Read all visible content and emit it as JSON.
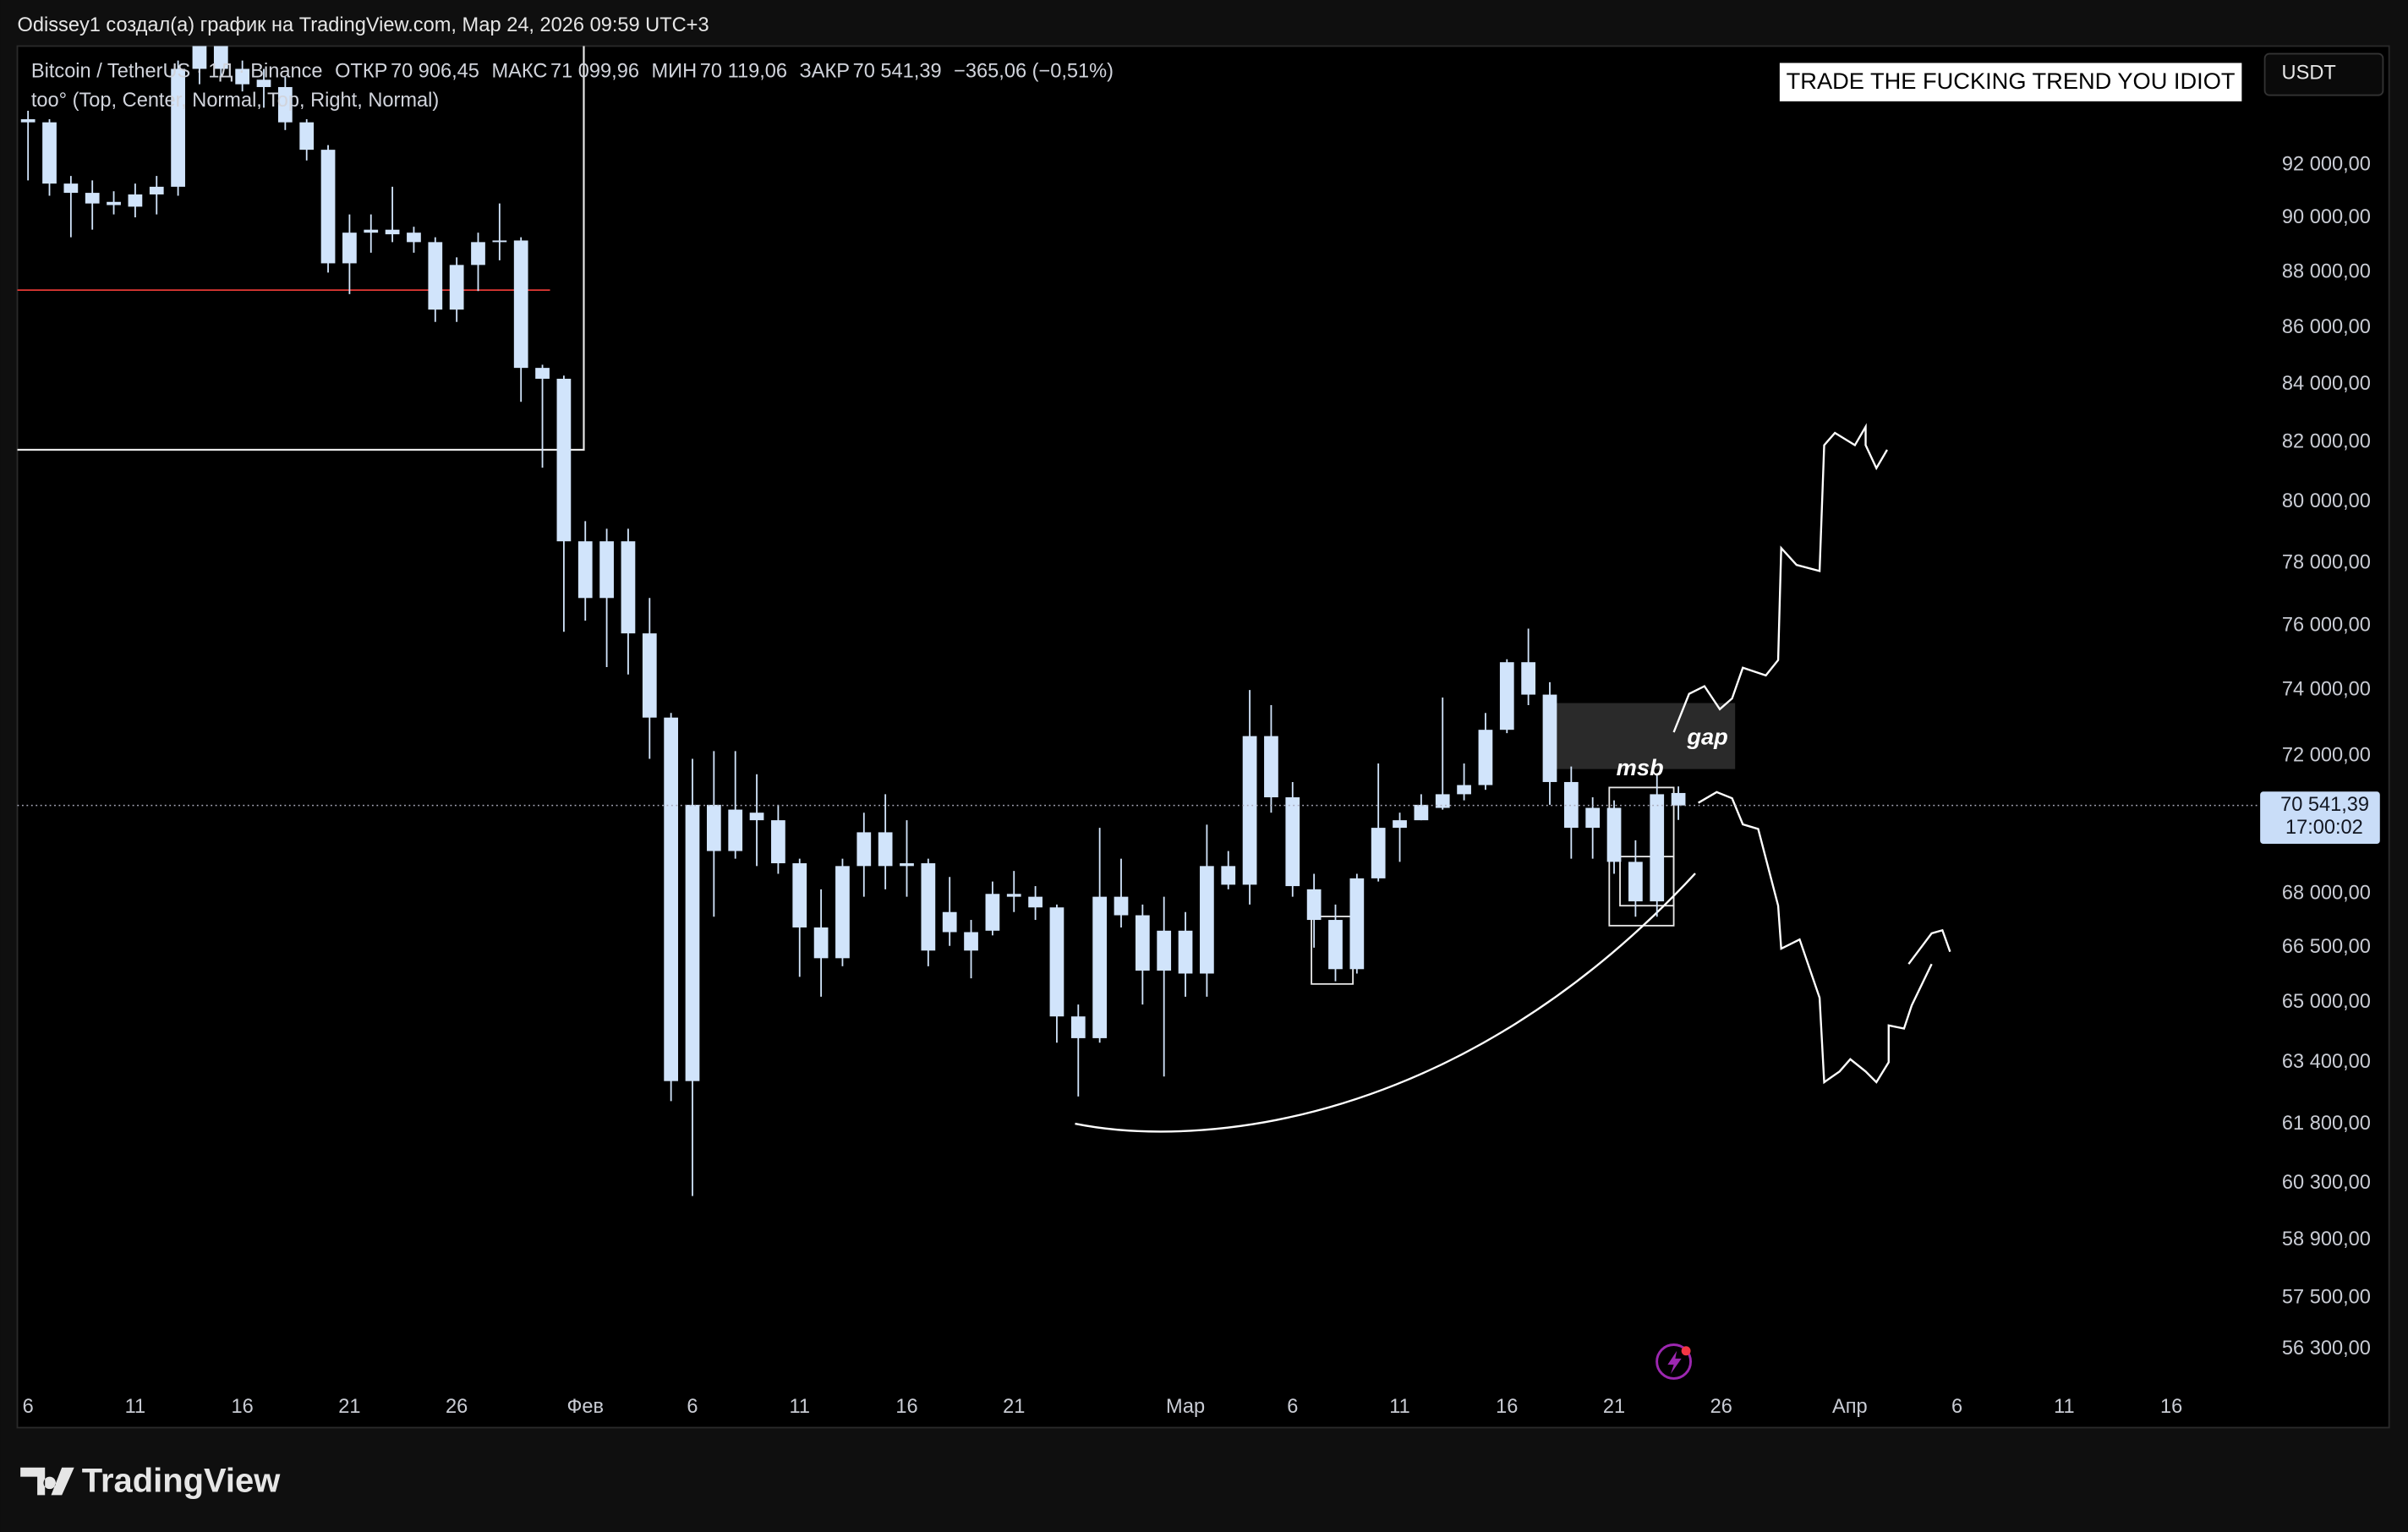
{
  "header": {
    "caption": "Odissey1 создал(а) график на TradingView.com, Мар 24, 2026 09:59 UTC+3",
    "logo": "TradingView"
  },
  "legend": {
    "symbol": "Bitcoin / TetherUS · 1Д · Binance",
    "items": [
      {
        "label": "ОТКР",
        "value": "70 906,45"
      },
      {
        "label": "МАКС",
        "value": "71 099,96"
      },
      {
        "label": "МИН",
        "value": "70 119,06"
      },
      {
        "label": "ЗАКР",
        "value": "70 541,39"
      }
    ],
    "change": "−365,06 (−0,51%)",
    "indicator": "too° (Top, Center, Normal, Top, Right, Normal)"
  },
  "toolbar": {
    "currency": "USDT"
  },
  "annotations": {
    "banner": "TRADE THE FUCKING TREND YOU IDIOT",
    "gap": "gap",
    "msb": "msb"
  },
  "chart_data": {
    "type": "candlestick",
    "log": true,
    "color": "#d1e4fb",
    "grid": false,
    "price_label": "70 541,39",
    "countdown": "17:00:02",
    "xlim": [
      "2026-01-05",
      "2026-04-20"
    ],
    "ylim": [
      55370,
      96660
    ],
    "x": [
      "2026-01-06",
      "2026-01-07",
      "2026-01-08",
      "2026-01-09",
      "2026-01-10",
      "2026-01-11",
      "2026-01-12",
      "2026-01-13",
      "2026-01-14",
      "2026-01-15",
      "2026-01-16",
      "2026-01-17",
      "2026-01-18",
      "2026-01-19",
      "2026-01-20",
      "2026-01-21",
      "2026-01-22",
      "2026-01-23",
      "2026-01-24",
      "2026-01-25",
      "2026-01-26",
      "2026-01-27",
      "2026-01-28",
      "2026-01-29",
      "2026-01-30",
      "2026-01-31",
      "2026-02-01",
      "2026-02-02",
      "2026-02-03",
      "2026-02-04",
      "2026-02-05",
      "2026-02-06",
      "2026-02-07",
      "2026-02-08",
      "2026-02-09",
      "2026-02-10",
      "2026-02-11",
      "2026-02-12",
      "2026-02-13",
      "2026-02-14",
      "2026-02-15",
      "2026-02-16",
      "2026-02-17",
      "2026-02-18",
      "2026-02-19",
      "2026-02-20",
      "2026-02-21",
      "2026-02-22",
      "2026-02-23",
      "2026-02-24",
      "2026-02-25",
      "2026-02-26",
      "2026-02-27",
      "2026-02-28",
      "2026-03-01",
      "2026-03-02",
      "2026-03-03",
      "2026-03-04",
      "2026-03-05",
      "2026-03-06",
      "2026-03-07",
      "2026-03-08",
      "2026-03-09",
      "2026-03-10",
      "2026-03-11",
      "2026-03-12",
      "2026-03-13",
      "2026-03-14",
      "2026-03-15",
      "2026-03-16",
      "2026-03-17",
      "2026-03-18",
      "2026-03-19",
      "2026-03-20",
      "2026-03-21",
      "2026-03-22",
      "2026-03-23",
      "2026-03-24"
    ],
    "open": [
      93650,
      93650,
      91300,
      90950,
      90490,
      90430,
      90890,
      91180,
      95750,
      96790,
      95750,
      95320,
      95030,
      93650,
      92590,
      88330,
      89460,
      89570,
      89460,
      89110,
      86650,
      88270,
      89110,
      89170,
      84580,
      84200,
      78710,
      76880,
      78710,
      75760,
      73160,
      62920,
      70560,
      69220,
      70330,
      70110,
      68870,
      67060,
      66210,
      68790,
      69760,
      68790,
      68870,
      67490,
      66930,
      66970,
      68000,
      67920,
      67620,
      64630,
      64050,
      67920,
      67400,
      65870,
      66970,
      65790,
      68790,
      68260,
      72600,
      70780,
      68130,
      67270,
      65910,
      68440,
      69890,
      70110,
      70470,
      70870,
      71140,
      72790,
      74860,
      73860,
      71230,
      69890,
      70470,
      68910,
      67790,
      70906.45
    ],
    "high": [
      94100,
      93770,
      91590,
      91420,
      91010,
      91300,
      91590,
      96080,
      97620,
      97620,
      96080,
      95750,
      95430,
      93770,
      92770,
      90140,
      90140,
      91180,
      89680,
      89290,
      88550,
      89460,
      90550,
      89290,
      84690,
      84310,
      79370,
      79120,
      79120,
      76880,
      73300,
      71920,
      72150,
      72150,
      71460,
      70560,
      69000,
      68130,
      69000,
      70330,
      70870,
      70110,
      69000,
      68480,
      67270,
      68350,
      68650,
      68220,
      67700,
      64950,
      69890,
      69000,
      67700,
      67920,
      67490,
      69980,
      69220,
      74000,
      73540,
      71230,
      68570,
      67700,
      68570,
      71780,
      70330,
      70870,
      73770,
      71780,
      73300,
      74950,
      75910,
      74240,
      71690,
      70780,
      70690,
      69530,
      71460,
      71099.96
    ],
    "low": [
      91420,
      90840,
      89290,
      89570,
      90140,
      90030,
      90140,
      90840,
      95140,
      95430,
      94860,
      94220,
      93350,
      92180,
      87990,
      87210,
      88720,
      89110,
      88720,
      86210,
      86210,
      87320,
      88440,
      83400,
      81150,
      75810,
      76160,
      74710,
      74480,
      71920,
      62400,
      59990,
      67360,
      69000,
      68790,
      68570,
      65700,
      65160,
      65990,
      67920,
      68130,
      67920,
      65990,
      66550,
      65660,
      66840,
      67490,
      67270,
      63930,
      62520,
      63930,
      67060,
      64950,
      63040,
      65160,
      65160,
      68130,
      67700,
      70330,
      67920,
      66500,
      65580,
      65790,
      68350,
      68910,
      70110,
      70420,
      70690,
      71000,
      72690,
      73540,
      70560,
      69000,
      69000,
      68570,
      67360,
      67360,
      70119.06
    ],
    "close": [
      93770,
      91300,
      90950,
      90550,
      90610,
      90890,
      91180,
      95750,
      96790,
      95750,
      95140,
      95030,
      93650,
      92590,
      88330,
      89460,
      89570,
      89400,
      89110,
      86650,
      88270,
      89110,
      89170,
      84580,
      84200,
      78710,
      76880,
      78710,
      75760,
      73160,
      62920,
      70560,
      69220,
      70420,
      70110,
      68870,
      67060,
      66210,
      68790,
      69760,
      68790,
      68870,
      66420,
      66930,
      66420,
      68000,
      67920,
      67620,
      64630,
      64050,
      67920,
      67400,
      65870,
      66970,
      65790,
      68790,
      68260,
      72600,
      70780,
      68220,
      67270,
      65910,
      68440,
      69890,
      70110,
      70560,
      70870,
      71140,
      72790,
      74860,
      73860,
      71230,
      69890,
      70470,
      68910,
      67790,
      70870,
      70541.39
    ],
    "xticks": [
      {
        "value": "2026-01-06",
        "label": "6"
      },
      {
        "value": "2026-01-11",
        "label": "11"
      },
      {
        "value": "2026-01-16",
        "label": "16"
      },
      {
        "value": "2026-01-21",
        "label": "21"
      },
      {
        "value": "2026-01-26",
        "label": "26"
      },
      {
        "value": "2026-02-01",
        "label": "Фев"
      },
      {
        "value": "2026-02-06",
        "label": "6"
      },
      {
        "value": "2026-02-11",
        "label": "11"
      },
      {
        "value": "2026-02-16",
        "label": "16"
      },
      {
        "value": "2026-02-21",
        "label": "21"
      },
      {
        "value": "2026-03-01",
        "label": "Мар"
      },
      {
        "value": "2026-03-06",
        "label": "6"
      },
      {
        "value": "2026-03-11",
        "label": "11"
      },
      {
        "value": "2026-03-16",
        "label": "16"
      },
      {
        "value": "2026-03-21",
        "label": "21"
      },
      {
        "value": "2026-03-26",
        "label": "26"
      },
      {
        "value": "2026-04-01",
        "label": "Апр"
      },
      {
        "value": "2026-04-06",
        "label": "6"
      },
      {
        "value": "2026-04-11",
        "label": "11"
      },
      {
        "value": "2026-04-16",
        "label": "16"
      }
    ],
    "yticks": [
      {
        "value": 92000,
        "label": "92 000,00"
      },
      {
        "value": 90000,
        "label": "90 000,00"
      },
      {
        "value": 88000,
        "label": "88 000,00"
      },
      {
        "value": 86000,
        "label": "86 000,00"
      },
      {
        "value": 84000,
        "label": "84 000,00"
      },
      {
        "value": 82000,
        "label": "82 000,00"
      },
      {
        "value": 80000,
        "label": "80 000,00"
      },
      {
        "value": 78000,
        "label": "78 000,00"
      },
      {
        "value": 76000,
        "label": "76 000,00"
      },
      {
        "value": 74000,
        "label": "74 000,00"
      },
      {
        "value": 72000,
        "label": "72 000,00"
      },
      {
        "value": 68000,
        "label": "68 000,00"
      },
      {
        "value": 66500,
        "label": "66 500,00"
      },
      {
        "value": 65000,
        "label": "65 000,00"
      },
      {
        "value": 63400,
        "label": "63 400,00"
      },
      {
        "value": 61800,
        "label": "61 800,00"
      },
      {
        "value": 60300,
        "label": "60 300,00"
      },
      {
        "value": 58900,
        "label": "58 900,00"
      },
      {
        "value": 57500,
        "label": "57 500,00"
      },
      {
        "value": 56300,
        "label": "56 300,00"
      }
    ]
  }
}
